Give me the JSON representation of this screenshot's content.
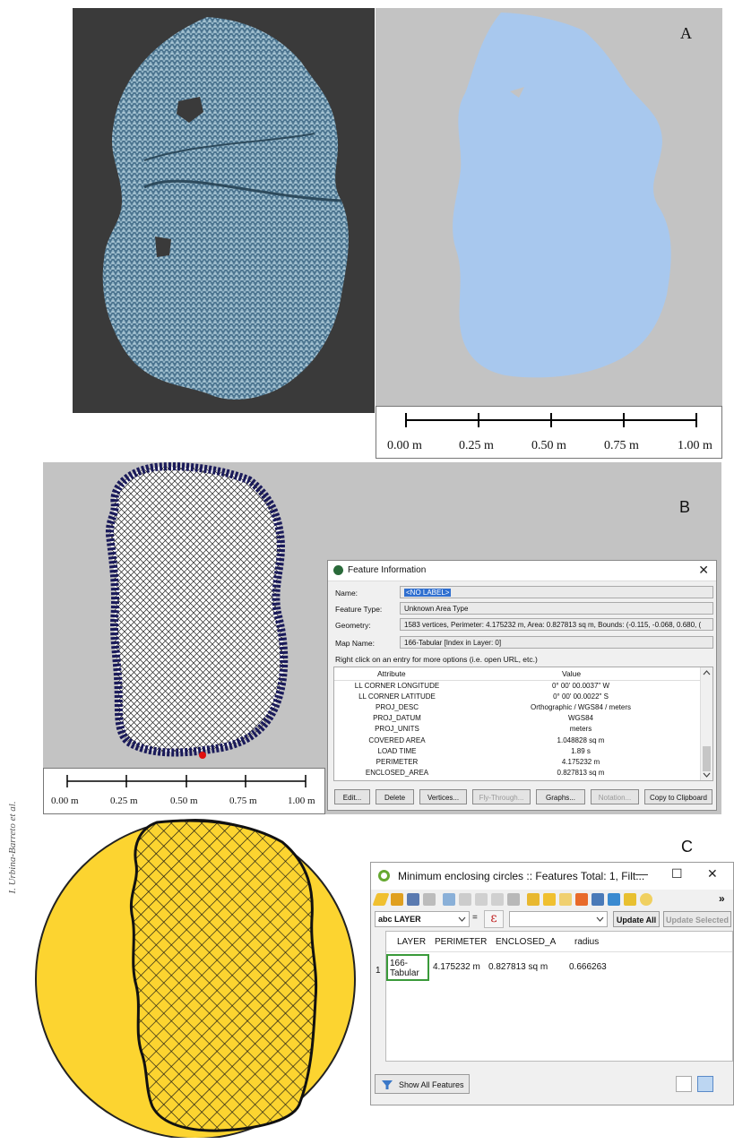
{
  "author_credit": "I. Urbina-Barreto et al.",
  "panel_a": {
    "letter": "A",
    "scale_labels": [
      "0.00 m",
      "0.25 m",
      "0.50 m",
      "0.75 m",
      "1.00 m"
    ]
  },
  "panel_b": {
    "letter": "B",
    "scale_labels": [
      "0.00 m",
      "0.25 m",
      "0.50 m",
      "0.75 m",
      "1.00 m"
    ],
    "feature_info": {
      "title": "Feature Information",
      "close_glyph": "✕",
      "fields": [
        {
          "label": "Name:",
          "value": "<NO LABEL>"
        },
        {
          "label": "Feature Type:",
          "value": "Unknown Area Type"
        },
        {
          "label": "Geometry:",
          "value": "1583 vertices, Perimeter: 4.175232 m, Area: 0.827813 sq m, Bounds: (-0.115, -0.068, 0.680, ("
        },
        {
          "label": "Map Name:",
          "value": "166-Tabular [Index in Layer: 0]"
        }
      ],
      "hint": "Right click on an entry for more options (i.e. open URL, etc.)",
      "columns": [
        "Attribute",
        "Value"
      ],
      "rows": [
        {
          "attr": "LL CORNER LONGITUDE",
          "value": "0° 00' 00.0037\" W"
        },
        {
          "attr": "LL CORNER LATITUDE",
          "value": "0° 00' 00.0022\" S"
        },
        {
          "attr": "PROJ_DESC",
          "value": "Orthographic / WGS84 / meters"
        },
        {
          "attr": "PROJ_DATUM",
          "value": "WGS84"
        },
        {
          "attr": "PROJ_UNITS",
          "value": "meters"
        },
        {
          "attr": "COVERED AREA",
          "value": "1.048828 sq m"
        },
        {
          "attr": "LOAD TIME",
          "value": "1.89 s"
        },
        {
          "attr": "PERIMETER",
          "value": "4.175232 m"
        },
        {
          "attr": "ENCLOSED_AREA",
          "value": "0.827813 sq m"
        }
      ],
      "buttons": [
        {
          "label": "Edit...",
          "disabled": false
        },
        {
          "label": "Delete",
          "disabled": false
        },
        {
          "label": "Vertices...",
          "disabled": false
        },
        {
          "label": "Fly-Through...",
          "disabled": true
        },
        {
          "label": "Graphs...",
          "disabled": false
        },
        {
          "label": "Notation...",
          "disabled": true
        },
        {
          "label": "Copy to Clipboard",
          "disabled": false
        }
      ]
    }
  },
  "panel_c": {
    "letter": "C",
    "attribute_table": {
      "title": "Minimum enclosing circles :: Features Total: 1, Filt...",
      "window_buttons": {
        "minimize": "—",
        "maximize": "☐",
        "close": "✕"
      },
      "overflow": "»",
      "field_select": "abc LAYER",
      "equals": "=",
      "expression_icon": "ε",
      "update_all": "Update All",
      "update_selected": "Update Selected",
      "columns": [
        "LAYER",
        "PERIMETER",
        "ENCLOSED_A",
        "radius"
      ],
      "rows": [
        {
          "index": "1",
          "layer": "166-Tabular",
          "perimeter": "4.175232 m",
          "enclosed": "0.827813 sq m",
          "radius": "0.666263"
        }
      ],
      "filter_label": "Show All Features"
    }
  },
  "colors": {
    "reef_fill": "#a8c8ee",
    "map_bg": "#c3c3c3",
    "dark_bg": "#3a3a3a",
    "circle_yellow": "#fcd430",
    "outline_blue": "#1a1a5a",
    "marker_red": "#e01010",
    "selection_blue": "#2f6fd0"
  }
}
